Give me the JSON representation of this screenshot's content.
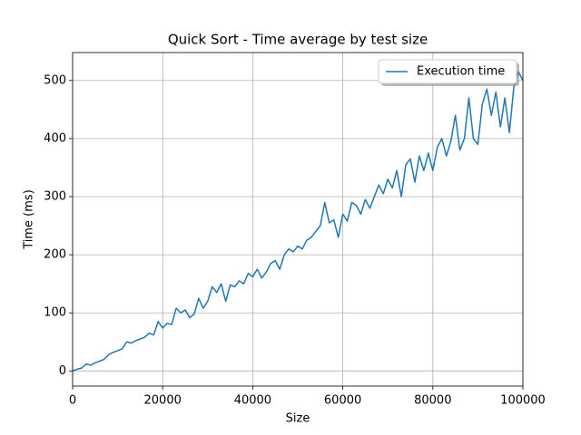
{
  "chart_data": {
    "type": "line",
    "title": "Quick Sort - Time average by test size",
    "x_label": "Size",
    "y_label": "Time (ms)",
    "x": [
      0,
      1000,
      2000,
      3000,
      4000,
      5000,
      6000,
      7000,
      8000,
      9000,
      10000,
      11000,
      12000,
      13000,
      14000,
      15000,
      16000,
      17000,
      18000,
      19000,
      20000,
      21000,
      22000,
      23000,
      24000,
      25000,
      26000,
      27000,
      28000,
      29000,
      30000,
      31000,
      32000,
      33000,
      34000,
      35000,
      36000,
      37000,
      38000,
      39000,
      40000,
      41000,
      42000,
      43000,
      44000,
      45000,
      46000,
      47000,
      48000,
      49000,
      50000,
      51000,
      52000,
      53000,
      54000,
      55000,
      56000,
      57000,
      58000,
      59000,
      60000,
      61000,
      62000,
      63000,
      64000,
      65000,
      66000,
      67000,
      68000,
      69000,
      70000,
      71000,
      72000,
      73000,
      74000,
      75000,
      76000,
      77000,
      78000,
      79000,
      80000,
      81000,
      82000,
      83000,
      84000,
      85000,
      86000,
      87000,
      88000,
      89000,
      90000,
      91000,
      92000,
      93000,
      94000,
      95000,
      96000,
      97000,
      98000,
      99000,
      100000
    ],
    "series": [
      {
        "name": "Execution time",
        "color": "#1f77b4",
        "values": [
          0,
          3,
          5,
          12,
          10,
          14,
          17,
          20,
          28,
          32,
          35,
          38,
          50,
          48,
          52,
          55,
          58,
          65,
          62,
          85,
          74,
          82,
          80,
          108,
          100,
          105,
          92,
          98,
          125,
          108,
          120,
          145,
          135,
          150,
          120,
          148,
          145,
          155,
          150,
          168,
          162,
          175,
          160,
          170,
          185,
          190,
          175,
          200,
          210,
          205,
          215,
          210,
          225,
          230,
          240,
          250,
          290,
          255,
          260,
          230,
          270,
          258,
          290,
          285,
          270,
          295,
          280,
          300,
          320,
          305,
          330,
          315,
          345,
          300,
          355,
          365,
          325,
          370,
          345,
          375,
          345,
          385,
          400,
          370,
          395,
          440,
          380,
          400,
          470,
          400,
          390,
          460,
          485,
          440,
          480,
          420,
          470,
          410,
          490,
          515,
          500
        ]
      }
    ],
    "xlim": [
      0,
      100000
    ],
    "ylim": [
      -26,
      548
    ],
    "xticks": [
      0,
      20000,
      40000,
      60000,
      80000,
      100000
    ],
    "yticks": [
      0,
      100,
      200,
      300,
      400,
      500
    ],
    "grid": true,
    "legend": "upper-right"
  }
}
